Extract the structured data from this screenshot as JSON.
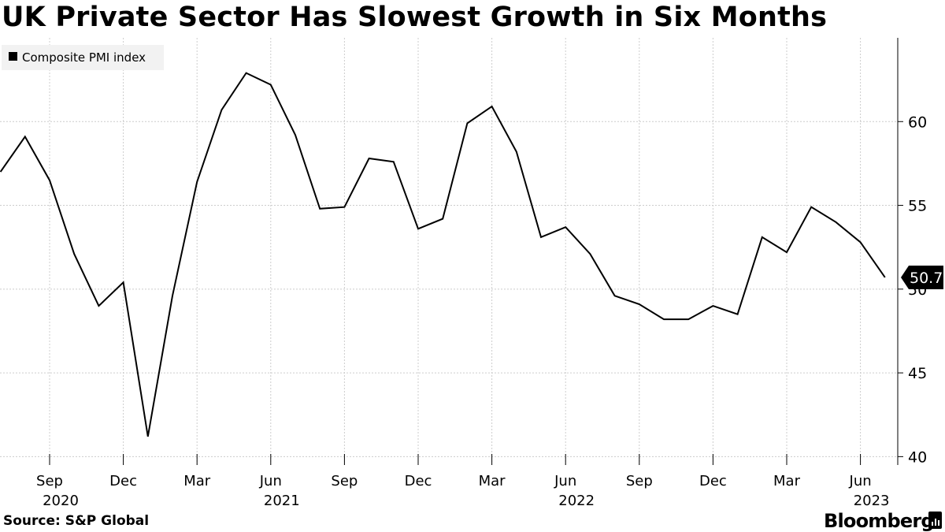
{
  "title": "UK Private Sector Has Slowest Growth in Six Months",
  "source": "Source: S&P Global",
  "brand": "Bloomberg",
  "chart_data": {
    "type": "line",
    "title": "UK Private Sector Has Slowest Growth in Six Months",
    "series": [
      {
        "name": "Composite PMI index",
        "color": "#000000",
        "x": [
          "2020-07",
          "2020-08",
          "2020-09",
          "2020-10",
          "2020-11",
          "2020-12",
          "2021-01",
          "2021-02",
          "2021-03",
          "2021-04",
          "2021-05",
          "2021-06",
          "2021-07",
          "2021-08",
          "2021-09",
          "2021-10",
          "2021-11",
          "2021-12",
          "2022-01",
          "2022-02",
          "2022-03",
          "2022-04",
          "2022-05",
          "2022-06",
          "2022-07",
          "2022-08",
          "2022-09",
          "2022-10",
          "2022-11",
          "2022-12",
          "2023-01",
          "2023-02",
          "2023-03",
          "2023-04",
          "2023-05",
          "2023-06",
          "2023-07"
        ],
        "values": [
          57.0,
          59.1,
          56.5,
          52.1,
          49.0,
          50.4,
          41.2,
          49.6,
          56.4,
          60.7,
          62.9,
          62.2,
          59.2,
          54.8,
          54.9,
          57.8,
          57.6,
          53.6,
          54.2,
          59.9,
          60.9,
          58.2,
          53.1,
          53.7,
          52.1,
          49.6,
          49.1,
          48.2,
          48.2,
          49.0,
          48.5,
          53.1,
          52.2,
          54.9,
          54.0,
          52.8,
          50.7
        ]
      }
    ],
    "last_value_label": "50.7",
    "y_ticks": [
      40,
      45,
      50,
      55,
      60
    ],
    "ylim": [
      39.5,
      65
    ],
    "x_ticks": [
      {
        "month": "2020-09",
        "label": "Sep",
        "year": "2020"
      },
      {
        "month": "2020-12",
        "label": "Dec",
        "year": ""
      },
      {
        "month": "2021-03",
        "label": "Mar",
        "year": ""
      },
      {
        "month": "2021-06",
        "label": "Jun",
        "year": "2021"
      },
      {
        "month": "2021-09",
        "label": "Sep",
        "year": ""
      },
      {
        "month": "2021-12",
        "label": "Dec",
        "year": ""
      },
      {
        "month": "2022-03",
        "label": "Mar",
        "year": ""
      },
      {
        "month": "2022-06",
        "label": "Jun",
        "year": "2022"
      },
      {
        "month": "2022-09",
        "label": "Sep",
        "year": ""
      },
      {
        "month": "2022-12",
        "label": "Dec",
        "year": ""
      },
      {
        "month": "2023-03",
        "label": "Mar",
        "year": ""
      },
      {
        "month": "2023-06",
        "label": "Jun",
        "year": "2023"
      }
    ],
    "legend": {
      "label": "Composite PMI index",
      "position": "top-left"
    },
    "grid": true,
    "colors": {
      "line": "#000000",
      "grid": "#cccccc",
      "legend_bg": "#f2f2f2",
      "axis": "#000000"
    }
  }
}
